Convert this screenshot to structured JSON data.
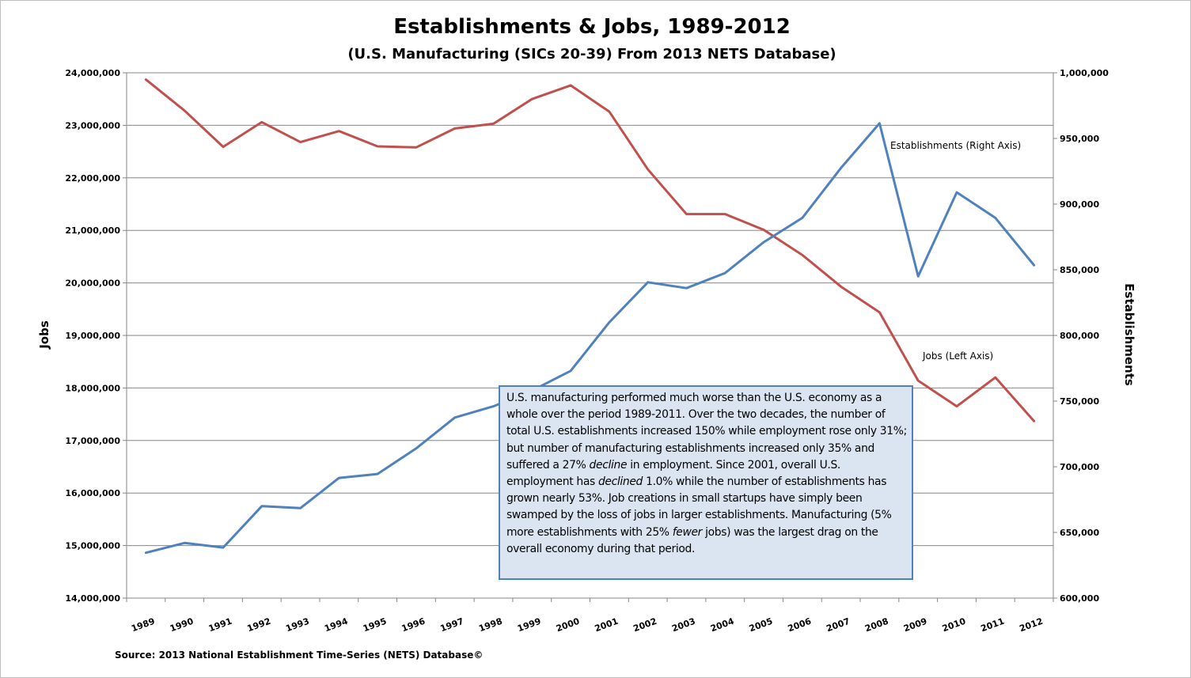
{
  "chart_data": {
    "type": "line",
    "title": "Establishments & Jobs, 1989-2012",
    "subtitle": "(U.S. Manufacturing (SICs 20-39) From 2013 NETS Database)",
    "categories": [
      "1989",
      "1990",
      "1991",
      "1992",
      "1993",
      "1994",
      "1995",
      "1996",
      "1997",
      "1998",
      "1999",
      "2000",
      "2001",
      "2002",
      "2003",
      "2004",
      "2005",
      "2006",
      "2007",
      "2008",
      "2009",
      "2010",
      "2011",
      "2012"
    ],
    "left_axis": {
      "label": "Jobs",
      "ylim": [
        14000000,
        24000000
      ],
      "ticks": [
        14000000,
        15000000,
        16000000,
        17000000,
        18000000,
        19000000,
        20000000,
        21000000,
        22000000,
        23000000,
        24000000
      ],
      "tick_labels": [
        "14,000,000",
        "15,000,000",
        "16,000,000",
        "17,000,000",
        "18,000,000",
        "19,000,000",
        "20,000,000",
        "21,000,000",
        "22,000,000",
        "23,000,000",
        "24,000,000"
      ]
    },
    "right_axis": {
      "label": "Establishments",
      "ylim": [
        600000,
        1000000
      ],
      "ticks": [
        600000,
        650000,
        700000,
        750000,
        800000,
        850000,
        900000,
        950000,
        1000000
      ],
      "tick_labels": [
        "600,000",
        "650,000",
        "700,000",
        "750,000",
        "800,000",
        "850,000",
        "900,000",
        "950,000",
        "1,000,000"
      ]
    },
    "grid": true,
    "series": [
      {
        "name": "Jobs",
        "axis": "left",
        "color": "#c0504d",
        "values": [
          23870000,
          23280000,
          22590000,
          23060000,
          22680000,
          22890000,
          22600000,
          22580000,
          22940000,
          23030000,
          23500000,
          23760000,
          23260000,
          22160000,
          21310000,
          21310000,
          21010000,
          20530000,
          19930000,
          19440000,
          18140000,
          17650000,
          18200000,
          17370000
        ]
      },
      {
        "name": "Establishments",
        "axis": "right",
        "color": "#4f81bd",
        "values": [
          634500,
          642000,
          638500,
          670000,
          668500,
          691500,
          694500,
          714000,
          737500,
          746000,
          758000,
          773000,
          810000,
          840500,
          836000,
          847500,
          871000,
          889500,
          927500,
          961500,
          845000,
          909000,
          889500,
          853500
        ]
      }
    ],
    "annotations": [
      {
        "text": "Establishments (Right Axis)",
        "series": "Establishments"
      },
      {
        "text": "Jobs (Left Axis)",
        "series": "Jobs"
      }
    ],
    "source": "Source: 2013 National Establishment Time-Series (NETS) Database©"
  },
  "textbox": {
    "segments": [
      {
        "t": "U.S. manufacturing performed much worse than the U.S. economy as a whole over the period 1989-2011.  Over the two decades, the number of total U.S. establishments increased 150% while employment rose only 31%; but number of manufacturing establishments increased only 35% and suffered a 27% "
      },
      {
        "t": "decline",
        "em": true
      },
      {
        "t": " in employment.  Since 2001, overall U.S. employment has "
      },
      {
        "t": "declined",
        "em": true
      },
      {
        "t": " 1.0% while the number of establishments has grown nearly 53%.  Job creations in small startups have simply been swamped by the loss of jobs in larger establishments.  Manufacturing (5% more establishments with 25% "
      },
      {
        "t": "fewer",
        "em": true
      },
      {
        "t": " jobs) was the largest drag on the overall economy during that period."
      }
    ]
  }
}
